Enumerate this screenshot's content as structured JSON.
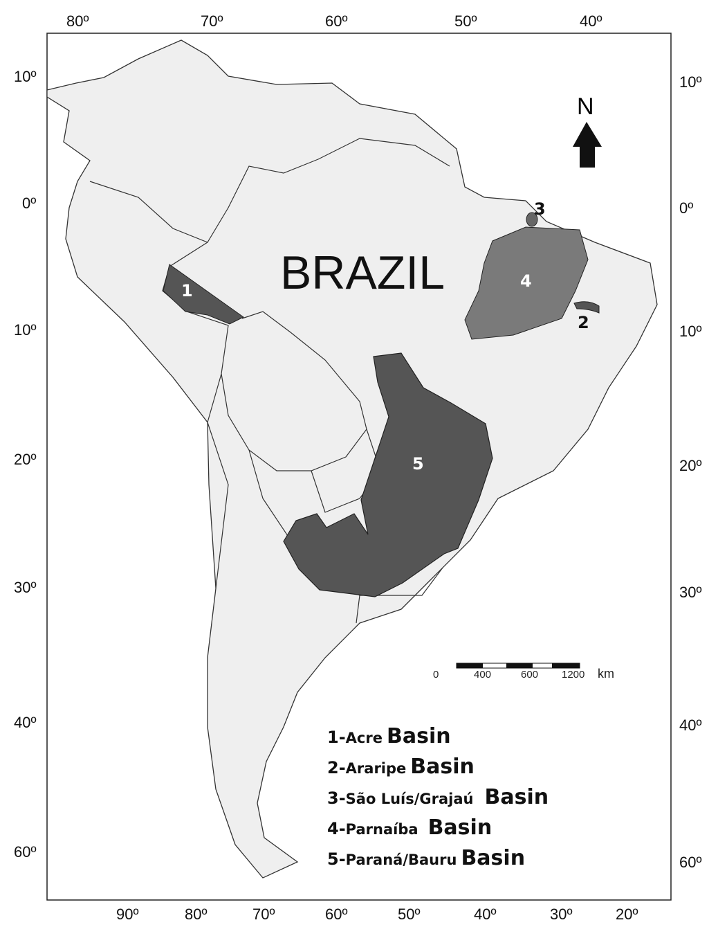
{
  "map": {
    "country_label": "BRAZIL",
    "north_label": "N",
    "top_longitudes": [
      "80º",
      "70º",
      "60º",
      "50º",
      "40º"
    ],
    "bottom_longitudes": [
      "90º",
      "80º",
      "70º",
      "60º",
      "50º",
      "40º",
      "30º",
      "20º"
    ],
    "left_latitudes": [
      "10º",
      "0º",
      "10º",
      "20º",
      "30º",
      "40º",
      "60º"
    ],
    "right_latitudes": [
      "10º",
      "0º",
      "10º",
      "20º",
      "30º",
      "40º",
      "60º"
    ],
    "basin_markers": [
      "1",
      "2",
      "3",
      "4",
      "5"
    ],
    "colors": {
      "land": "#efefef",
      "basin_dark": "#555555",
      "basin_medium": "#7a7a7a",
      "border": "#333333"
    }
  },
  "scale_bar": {
    "labels": [
      "0",
      "400",
      "600",
      "1200"
    ],
    "unit": "km"
  },
  "legend": [
    {
      "num": "1-",
      "name": "Acre",
      "suffix": "Basin"
    },
    {
      "num": "2-",
      "name": "Araripe",
      "suffix": "Basin"
    },
    {
      "num": "3-",
      "name": "São Luís/Grajaú",
      "suffix": "Basin"
    },
    {
      "num": "4-",
      "name": "Parnaíba",
      "suffix": "Basin"
    },
    {
      "num": "5-",
      "name": "Paraná/Bauru",
      "suffix": "Basin"
    }
  ]
}
